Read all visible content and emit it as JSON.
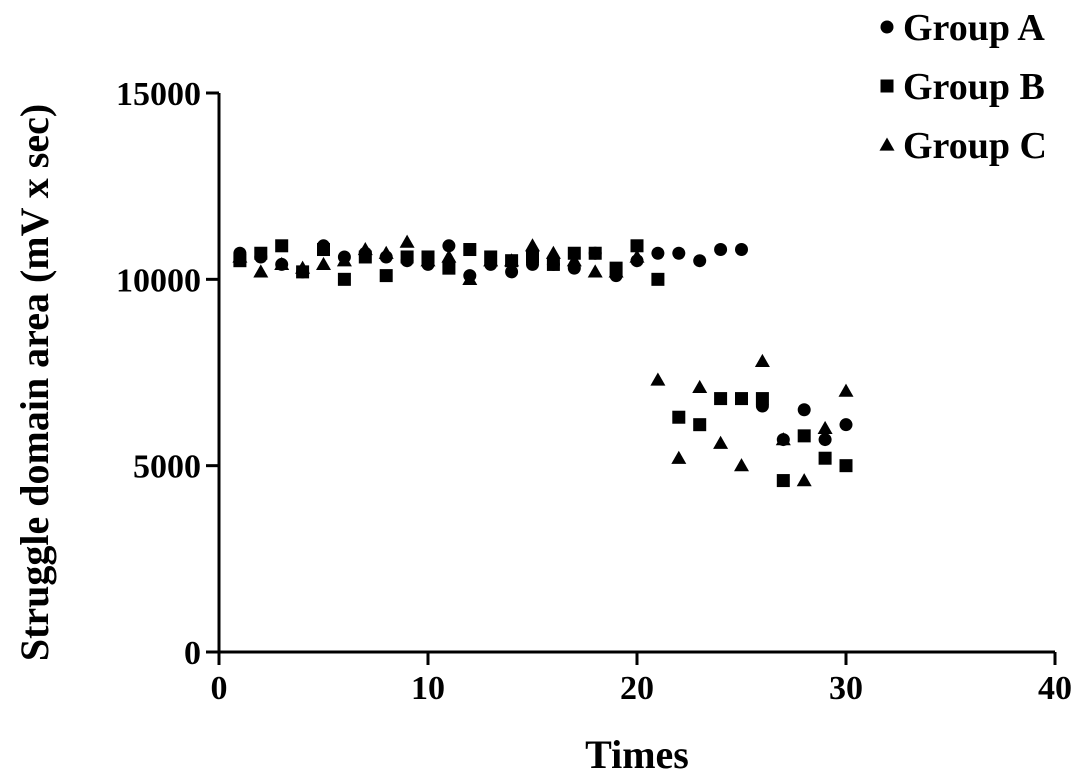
{
  "chart_data": {
    "type": "scatter",
    "xlabel": "Times",
    "ylabel": "Struggle domain area (mV x sec)",
    "xlim": [
      0,
      40
    ],
    "ylim": [
      0,
      15000
    ],
    "xticks": [
      0,
      10,
      20,
      30,
      40
    ],
    "yticks": [
      0,
      5000,
      10000,
      15000
    ],
    "legend_position": "top-right",
    "grid": false,
    "series": [
      {
        "name": "Group A",
        "marker": "circle",
        "color": "#000000",
        "x": [
          1,
          2,
          3,
          4,
          5,
          6,
          7,
          8,
          9,
          10,
          11,
          12,
          13,
          14,
          15,
          16,
          17,
          18,
          19,
          20,
          21,
          22,
          23,
          24,
          25,
          26,
          27,
          28,
          29,
          30
        ],
        "y": [
          10700,
          10600,
          10400,
          10200,
          10900,
          10600,
          10700,
          10600,
          10500,
          10400,
          10900,
          10100,
          10400,
          10200,
          10400,
          10400,
          10300,
          10700,
          10100,
          10500,
          10700,
          10700,
          10500,
          10800,
          10800,
          6600,
          5700,
          6500,
          5700,
          6100
        ]
      },
      {
        "name": "Group B",
        "marker": "square",
        "color": "#000000",
        "x": [
          1,
          2,
          3,
          4,
          5,
          6,
          7,
          8,
          9,
          10,
          11,
          12,
          13,
          14,
          15,
          16,
          17,
          18,
          19,
          20,
          21,
          22,
          23,
          24,
          25,
          26,
          27,
          28,
          29,
          30
        ],
        "y": [
          10500,
          10700,
          10900,
          10200,
          10800,
          10000,
          10600,
          10100,
          10600,
          10600,
          10300,
          10800,
          10600,
          10500,
          10600,
          10400,
          10700,
          10700,
          10300,
          10900,
          10000,
          6300,
          6100,
          6800,
          6800,
          6800,
          4600,
          5800,
          5200,
          5000
        ]
      },
      {
        "name": "Group C",
        "marker": "triangle",
        "color": "#000000",
        "x": [
          1,
          2,
          3,
          4,
          5,
          6,
          7,
          8,
          9,
          10,
          11,
          12,
          13,
          14,
          15,
          16,
          17,
          18,
          19,
          20,
          21,
          22,
          23,
          24,
          25,
          26,
          27,
          28,
          29,
          30
        ],
        "y": [
          10600,
          10200,
          10400,
          10300,
          10400,
          10500,
          10800,
          10700,
          11000,
          10500,
          10600,
          10000,
          10500,
          10500,
          10900,
          10700,
          10500,
          10200,
          10200,
          10600,
          7300,
          5200,
          7100,
          5600,
          5000,
          7800,
          5700,
          4600,
          6000,
          7000
        ]
      }
    ]
  }
}
